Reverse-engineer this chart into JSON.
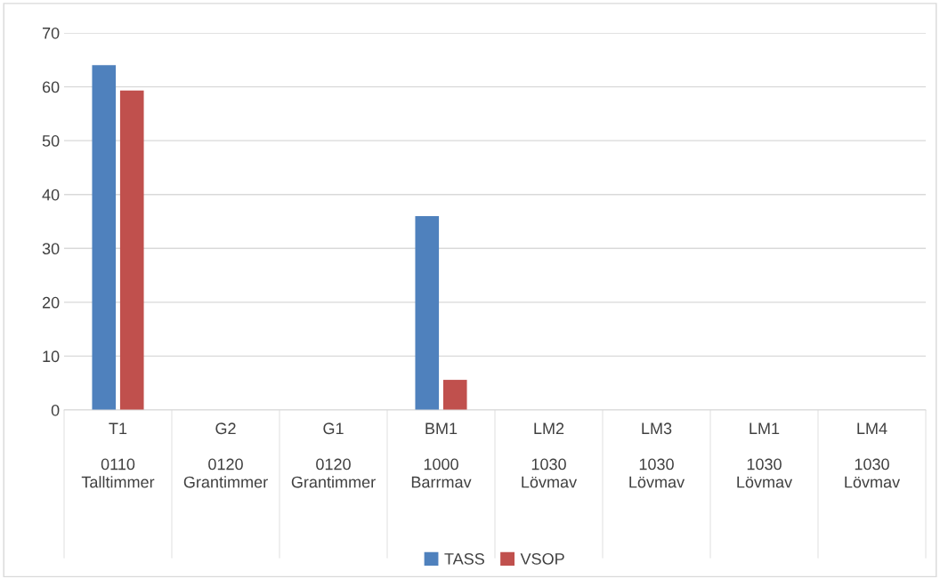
{
  "chart_data": {
    "type": "bar",
    "categories": [
      "T1\n\n0110\nTalltimmer",
      "G2\n\n0120\nGrantimmer",
      "G1\n\n0120\nGrantimmer",
      "BM1\n\n1000\nBarrmav",
      "LM2\n\n1030\nLövmav",
      "LM3\n\n1030\nLövmav",
      "LM1\n\n1030\nLövmav",
      "LM4\n\n1030\nLövmav"
    ],
    "series": [
      {
        "name": "TASS",
        "color": "#4f81bd",
        "values": [
          64,
          0,
          0,
          36,
          0,
          0,
          0,
          0
        ]
      },
      {
        "name": "VSOP",
        "color": "#c0504d",
        "values": [
          59.3,
          0,
          0,
          5.6,
          0,
          0,
          0,
          0
        ]
      }
    ],
    "ylim": [
      0,
      70
    ],
    "yticks": [
      0,
      10,
      20,
      30,
      40,
      50,
      60,
      70
    ],
    "grid": "y",
    "legend": "bottom"
  }
}
